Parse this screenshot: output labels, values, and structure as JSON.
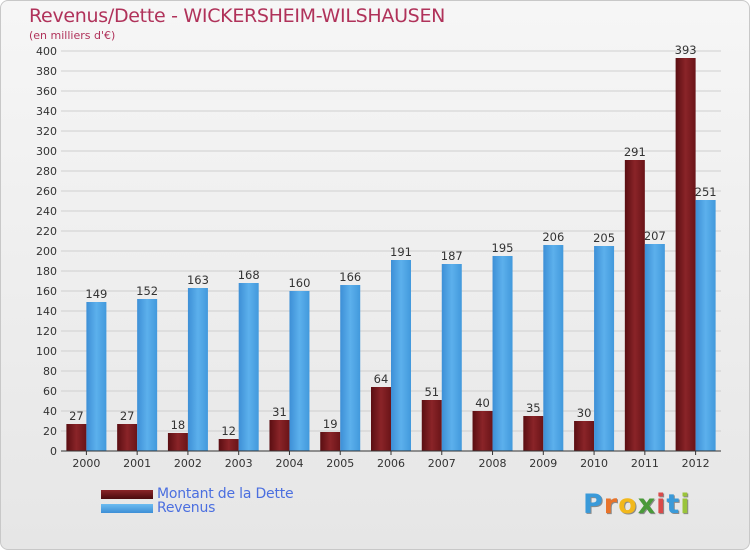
{
  "header": {
    "title": "Revenus/Dette - WICKERSHEIM-WILSHAUSEN",
    "subtitle": "(en milliers d'€)"
  },
  "legend": {
    "debt_label": "Montant de la Dette",
    "revenue_label": "Revenus"
  },
  "brand": {
    "letters": [
      "P",
      "r",
      "o",
      "x",
      "i",
      "t",
      "i"
    ],
    "colors": [
      "#3a9ad9",
      "#e8732a",
      "#f2b81c",
      "#4a9a3a",
      "#d94a4a",
      "#3a9ad9",
      "#9ac43a"
    ]
  },
  "colors": {
    "debt": "#7a1a1e",
    "revenue": "#4ea4e6"
  },
  "chart_data": {
    "type": "bar",
    "title": "Revenus/Dette - WICKERSHEIM-WILSHAUSEN",
    "subtitle": "(en milliers d'€)",
    "categories": [
      "2000",
      "2001",
      "2002",
      "2003",
      "2004",
      "2005",
      "2006",
      "2007",
      "2008",
      "2009",
      "2010",
      "2011",
      "2012"
    ],
    "series": [
      {
        "name": "Montant de la Dette",
        "values": [
          27,
          27,
          18,
          12,
          31,
          19,
          64,
          51,
          40,
          35,
          30,
          291,
          393
        ]
      },
      {
        "name": "Revenus",
        "values": [
          149,
          152,
          163,
          168,
          160,
          166,
          191,
          187,
          195,
          206,
          205,
          207,
          251
        ]
      }
    ],
    "ylim": [
      0,
      400
    ],
    "yticks": [
      0,
      20,
      40,
      60,
      80,
      100,
      120,
      140,
      160,
      180,
      200,
      220,
      240,
      260,
      280,
      300,
      320,
      340,
      360,
      380,
      400
    ],
    "grid": true,
    "legend_position": "bottom-left"
  }
}
